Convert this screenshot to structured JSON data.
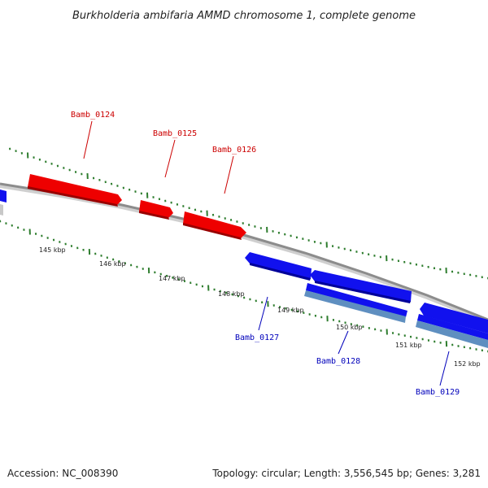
{
  "title": "Burkholderia ambifaria AMMD chromosome 1, complete genome",
  "footer": {
    "accession": "Accession: NC_008390",
    "topology": "Topology: circular; Length: 3,556,545 bp; Genes: 3,281"
  },
  "colors": {
    "forward_gene": "#ee0000",
    "reverse_gene": "#1111ee",
    "reverse_cds": "#5f8fc0",
    "backbone": "#8c8c8c",
    "tick": "#2e7d2e",
    "forward_label": "#cc0000",
    "reverse_label": "#0000bb"
  },
  "ticks": {
    "labels": [
      "145 kbp",
      "146 kbp",
      "147 kbp",
      "148 kbp",
      "149 kbp",
      "150 kbp",
      "151 kbp",
      "152 kbp"
    ]
  },
  "genes": [
    {
      "name": "Bamb_0124",
      "strand": "forward"
    },
    {
      "name": "Bamb_0125",
      "strand": "forward"
    },
    {
      "name": "Bamb_0126",
      "strand": "forward"
    },
    {
      "name": "Bamb_0127",
      "strand": "reverse"
    },
    {
      "name": "Bamb_0128",
      "strand": "reverse"
    },
    {
      "name": "Bamb_0129",
      "strand": "reverse"
    }
  ]
}
